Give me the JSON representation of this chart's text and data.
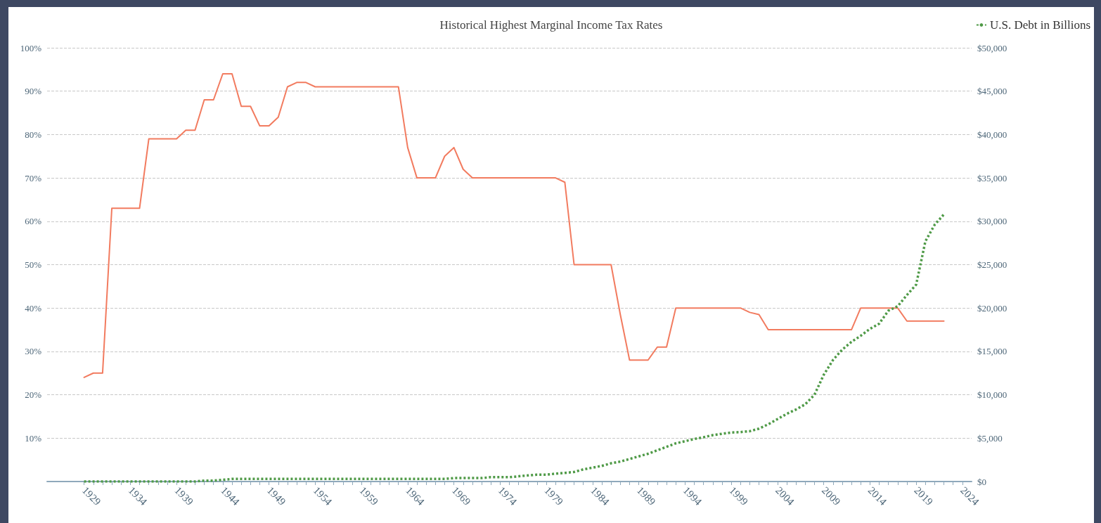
{
  "chart_data": {
    "type": "line",
    "title": "Historical Highest Marginal Income Tax Rates",
    "x": [
      1929,
      1930,
      1931,
      1932,
      1933,
      1934,
      1935,
      1936,
      1937,
      1938,
      1939,
      1940,
      1941,
      1942,
      1943,
      1944,
      1945,
      1946,
      1947,
      1948,
      1949,
      1950,
      1951,
      1952,
      1953,
      1954,
      1955,
      1956,
      1957,
      1958,
      1959,
      1960,
      1961,
      1962,
      1963,
      1964,
      1965,
      1966,
      1967,
      1968,
      1969,
      1970,
      1971,
      1972,
      1973,
      1974,
      1975,
      1976,
      1977,
      1978,
      1979,
      1980,
      1981,
      1982,
      1983,
      1984,
      1985,
      1986,
      1987,
      1988,
      1989,
      1990,
      1991,
      1992,
      1993,
      1994,
      1995,
      1996,
      1997,
      1998,
      1999,
      2000,
      2001,
      2002,
      2003,
      2004,
      2005,
      2006,
      2007,
      2008,
      2009,
      2010,
      2011,
      2012,
      2013,
      2014,
      2015,
      2016,
      2017,
      2018,
      2019,
      2020,
      2021,
      2022
    ],
    "series": [
      {
        "color": "#f27b5f",
        "line_style": "solid",
        "values": [
          24,
          25,
          25,
          63,
          63,
          63,
          63,
          79,
          79,
          79,
          79,
          81,
          81,
          88,
          88,
          94,
          94,
          86.5,
          86.5,
          82,
          82,
          84,
          91,
          92,
          92,
          91,
          91,
          91,
          91,
          91,
          91,
          91,
          91,
          91,
          91,
          77,
          70,
          70,
          70,
          75,
          77,
          72,
          70,
          70,
          70,
          70,
          70,
          70,
          70,
          70,
          70,
          70,
          69,
          50,
          50,
          50,
          50,
          50,
          38.5,
          28,
          28,
          28,
          31,
          31,
          40,
          40,
          40,
          40,
          40,
          40,
          40,
          40,
          39,
          38.5,
          35,
          35,
          35,
          35,
          35,
          35,
          35,
          35,
          35,
          35,
          40,
          40,
          40,
          40,
          40,
          37,
          37,
          37,
          37,
          37
        ]
      },
      {
        "name": "U.S. Debt in Billions",
        "color": "#4f9a47",
        "axis": "y2",
        "line_style": "dotted",
        "values": [
          0,
          0,
          0,
          0,
          0,
          0,
          0,
          0,
          0,
          0,
          0,
          0,
          0,
          100,
          100,
          200,
          300,
          300,
          300,
          300,
          300,
          300,
          300,
          300,
          300,
          300,
          300,
          300,
          300,
          300,
          300,
          300,
          300,
          300,
          300,
          300,
          300,
          300,
          300,
          300,
          400,
          400,
          400,
          400,
          500,
          500,
          500,
          600,
          700,
          800,
          800,
          900,
          1000,
          1100,
          1400,
          1600,
          1800,
          2100,
          2300,
          2600,
          2900,
          3200,
          3600,
          4000,
          4400,
          4650,
          4900,
          5100,
          5350,
          5500,
          5650,
          5700,
          5800,
          6100,
          6600,
          7200,
          7800,
          8300,
          8900,
          10000,
          12300,
          14000,
          15200,
          16100,
          16800,
          17600,
          18200,
          19700,
          20200,
          21500,
          22700,
          27700,
          29600,
          30800
        ]
      }
    ],
    "xlim": [
      1925,
      2025
    ],
    "xticks": [
      1929,
      {
        "value": 1930,
        "label": null
      },
      {
        "value": 1931,
        "label": null
      },
      {
        "value": 1932,
        "label": null
      },
      {
        "value": 1933,
        "label": null
      },
      1934,
      {
        "value": 1935,
        "label": null
      },
      {
        "value": 1936,
        "label": null
      },
      {
        "value": 1937,
        "label": null
      },
      {
        "value": 1938,
        "label": null
      },
      1939,
      {
        "value": 1940,
        "label": null
      },
      {
        "value": 1941,
        "label": null
      },
      {
        "value": 1942,
        "label": null
      },
      {
        "value": 1943,
        "label": null
      },
      1944,
      {
        "value": 1945,
        "label": null
      },
      {
        "value": 1946,
        "label": null
      },
      {
        "value": 1947,
        "label": null
      },
      {
        "value": 1948,
        "label": null
      },
      1949,
      {
        "value": 1950,
        "label": null
      },
      {
        "value": 1951,
        "label": null
      },
      {
        "value": 1952,
        "label": null
      },
      {
        "value": 1953,
        "label": null
      },
      1954,
      {
        "value": 1955,
        "label": null
      },
      {
        "value": 1956,
        "label": null
      },
      {
        "value": 1957,
        "label": null
      },
      {
        "value": 1958,
        "label": null
      },
      1959,
      {
        "value": 1960,
        "label": null
      },
      {
        "value": 1961,
        "label": null
      },
      {
        "value": 1962,
        "label": null
      },
      {
        "value": 1963,
        "label": null
      },
      1964,
      {
        "value": 1965,
        "label": null
      },
      {
        "value": 1966,
        "label": null
      },
      {
        "value": 1967,
        "label": null
      },
      {
        "value": 1968,
        "label": null
      },
      1969,
      {
        "value": 1970,
        "label": null
      },
      {
        "value": 1971,
        "label": null
      },
      {
        "value": 1972,
        "label": null
      },
      {
        "value": 1973,
        "label": null
      },
      1974,
      {
        "value": 1975,
        "label": null
      },
      {
        "value": 1976,
        "label": null
      },
      {
        "value": 1977,
        "label": null
      },
      {
        "value": 1978,
        "label": null
      },
      1979,
      {
        "value": 1980,
        "label": null
      },
      {
        "value": 1981,
        "label": null
      },
      {
        "value": 1982,
        "label": null
      },
      {
        "value": 1983,
        "label": null
      },
      1984,
      {
        "value": 1985,
        "label": null
      },
      {
        "value": 1986,
        "label": null
      },
      {
        "value": 1987,
        "label": null
      },
      {
        "value": 1988,
        "label": null
      },
      1989,
      {
        "value": 1990,
        "label": null
      },
      {
        "value": 1991,
        "label": null
      },
      {
        "value": 1992,
        "label": null
      },
      {
        "value": 1993,
        "label": null
      },
      1994,
      {
        "value": 1995,
        "label": null
      },
      {
        "value": 1996,
        "label": null
      },
      {
        "value": 1997,
        "label": null
      },
      {
        "value": 1998,
        "label": null
      },
      1999,
      {
        "value": 2000,
        "label": null
      },
      {
        "value": 2001,
        "label": null
      },
      {
        "value": 2002,
        "label": null
      },
      {
        "value": 2003,
        "label": null
      },
      2004,
      {
        "value": 2005,
        "label": null
      },
      {
        "value": 2006,
        "label": null
      },
      {
        "value": 2007,
        "label": null
      },
      {
        "value": 2008,
        "label": null
      },
      2009,
      {
        "value": 2010,
        "label": null
      },
      {
        "value": 2011,
        "label": null
      },
      {
        "value": 2012,
        "label": null
      },
      {
        "value": 2013,
        "label": null
      },
      2014,
      {
        "value": 2015,
        "label": null
      },
      {
        "value": 2016,
        "label": null
      },
      {
        "value": 2017,
        "label": null
      },
      {
        "value": 2018,
        "label": null
      },
      2019,
      {
        "value": 2020,
        "label": null
      },
      {
        "value": 2021,
        "label": null
      },
      {
        "value": 2022,
        "label": null
      },
      {
        "value": 2023,
        "label": null
      },
      2024
    ],
    "ylim": [
      0,
      100
    ],
    "yticks": [
      {
        "value": 0,
        "label": null
      },
      {
        "value": 10,
        "label": "10%"
      },
      {
        "value": 20,
        "label": "20%"
      },
      {
        "value": 30,
        "label": "30%"
      },
      {
        "value": 40,
        "label": "40%"
      },
      {
        "value": 50,
        "label": "50%"
      },
      {
        "value": 60,
        "label": "60%"
      },
      {
        "value": 70,
        "label": "70%"
      },
      {
        "value": 80,
        "label": "80%"
      },
      {
        "value": 90,
        "label": "90%"
      },
      {
        "value": 100,
        "label": "100%"
      }
    ],
    "y2lim": [
      0,
      50000
    ],
    "y2ticks": [
      {
        "value": 0,
        "label": "$0"
      },
      {
        "value": 5000,
        "label": "$5,000"
      },
      {
        "value": 10000,
        "label": "$10,000"
      },
      {
        "value": 15000,
        "label": "$15,000"
      },
      {
        "value": 20000,
        "label": "$20,000"
      },
      {
        "value": 25000,
        "label": "$25,000"
      },
      {
        "value": 30000,
        "label": "$30,000"
      },
      {
        "value": 35000,
        "label": "$35,000"
      },
      {
        "value": 40000,
        "label": "$40,000"
      },
      {
        "value": 45000,
        "label": "$45,000"
      },
      {
        "value": 50000,
        "label": "$50,000"
      }
    ],
    "grid": "y",
    "legend": "top right",
    "marker": "none"
  }
}
